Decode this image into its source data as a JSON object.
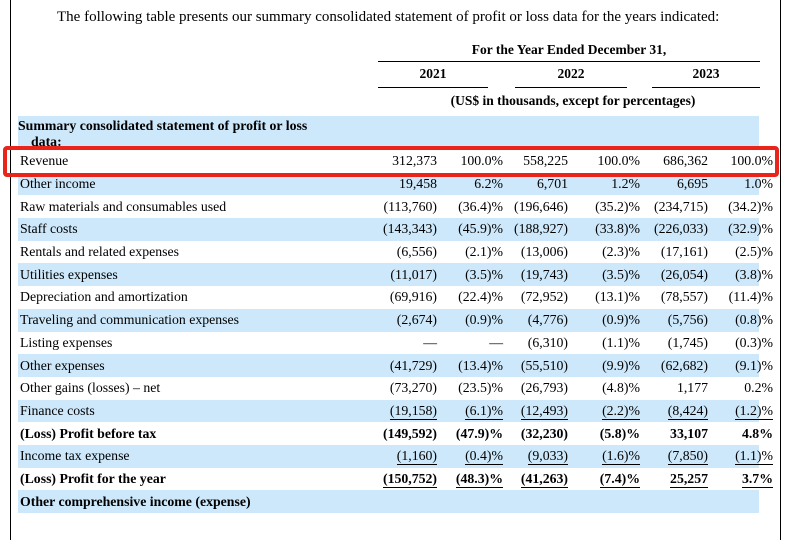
{
  "intro_paragraph": "The following table presents our summary consolidated statement of profit or loss data for the years indicated:",
  "colors": {
    "stripe": "#cde8fa",
    "highlight_red": "#e8241b"
  },
  "table": {
    "period_header": "For the Year Ended December 31,",
    "years": [
      "2021",
      "2022",
      "2023"
    ],
    "units_note": "(US$ in thousands, except for percentages)",
    "section_header_line1": "Summary consolidated statement of profit or loss",
    "section_header_line2": "data:",
    "columns": [
      "2021 amount",
      "2021 percent",
      "2022 amount",
      "2022 percent",
      "2023 amount",
      "2023 percent"
    ],
    "rows": [
      {
        "label": "Revenue",
        "stripe": false,
        "bold": false,
        "underline": false,
        "highlight": true,
        "values": [
          "312,373",
          "100.0%",
          "558,225",
          "100.0%",
          "686,362",
          "100.0%"
        ]
      },
      {
        "label": "Other income",
        "stripe": true,
        "bold": false,
        "underline": false,
        "highlight": false,
        "values": [
          "19,458",
          "6.2%",
          "6,701",
          "1.2%",
          "6,695",
          "1.0%"
        ]
      },
      {
        "label": "Raw materials and consumables used",
        "stripe": false,
        "bold": false,
        "underline": false,
        "highlight": false,
        "values": [
          "(113,760)",
          "(36.4)%",
          "(196,646)",
          "(35.2)%",
          "(234,715)",
          "(34.2)%"
        ]
      },
      {
        "label": "Staff costs",
        "stripe": true,
        "bold": false,
        "underline": false,
        "highlight": false,
        "values": [
          "(143,343)",
          "(45.9)%",
          "(188,927)",
          "(33.8)%",
          "(226,033)",
          "(32.9)%"
        ]
      },
      {
        "label": "Rentals and related expenses",
        "stripe": false,
        "bold": false,
        "underline": false,
        "highlight": false,
        "values": [
          "(6,556)",
          "(2.1)%",
          "(13,006)",
          "(2.3)%",
          "(17,161)",
          "(2.5)%"
        ]
      },
      {
        "label": "Utilities expenses",
        "stripe": true,
        "bold": false,
        "underline": false,
        "highlight": false,
        "values": [
          "(11,017)",
          "(3.5)%",
          "(19,743)",
          "(3.5)%",
          "(26,054)",
          "(3.8)%"
        ]
      },
      {
        "label": "Depreciation and amortization",
        "stripe": false,
        "bold": false,
        "underline": false,
        "highlight": false,
        "values": [
          "(69,916)",
          "(22.4)%",
          "(72,952)",
          "(13.1)%",
          "(78,557)",
          "(11.4)%"
        ]
      },
      {
        "label": "Traveling and communication expenses",
        "stripe": true,
        "bold": false,
        "underline": false,
        "highlight": false,
        "values": [
          "(2,674)",
          "(0.9)%",
          "(4,776)",
          "(0.9)%",
          "(5,756)",
          "(0.8)%"
        ]
      },
      {
        "label": "Listing expenses",
        "stripe": false,
        "bold": false,
        "underline": false,
        "highlight": false,
        "values": [
          "—",
          "—",
          "(6,310)",
          "(1.1)%",
          "(1,745)",
          "(0.3)%"
        ]
      },
      {
        "label": "Other expenses",
        "stripe": true,
        "bold": false,
        "underline": false,
        "highlight": false,
        "values": [
          "(41,729)",
          "(13.4)%",
          "(55,510)",
          "(9.9)%",
          "(62,682)",
          "(9.1)%"
        ]
      },
      {
        "label": "Other gains (losses) – net",
        "stripe": false,
        "bold": false,
        "underline": false,
        "highlight": false,
        "values": [
          "(73,270)",
          "(23.5)%",
          "(26,793)",
          "(4.8)%",
          "1,177",
          "0.2%"
        ]
      },
      {
        "label": "Finance costs",
        "stripe": true,
        "bold": false,
        "underline": true,
        "highlight": false,
        "values": [
          "(19,158)",
          "(6.1)%",
          "(12,493)",
          "(2.2)%",
          "(8,424)",
          "(1.2)%"
        ]
      },
      {
        "label": "(Loss) Profit before tax",
        "stripe": false,
        "bold": true,
        "underline": false,
        "highlight": false,
        "values": [
          "(149,592)",
          "(47.9)%",
          "(32,230)",
          "(5.8)%",
          "33,107",
          "4.8%"
        ]
      },
      {
        "label": "Income tax expense",
        "stripe": true,
        "bold": false,
        "underline": true,
        "highlight": false,
        "values": [
          "(1,160)",
          "(0.4)%",
          "(9,033)",
          "(1.6)%",
          "(7,850)",
          "(1.1)%"
        ]
      },
      {
        "label": "(Loss) Profit for the year",
        "stripe": false,
        "bold": true,
        "underline": true,
        "highlight": false,
        "values": [
          "(150,752)",
          "(48.3)%",
          "(41,263)",
          "(7.4)%",
          "25,257",
          "3.7%"
        ]
      },
      {
        "label": "Other comprehensive income (expense)",
        "stripe": true,
        "bold": true,
        "underline": false,
        "highlight": false,
        "values": []
      }
    ]
  }
}
